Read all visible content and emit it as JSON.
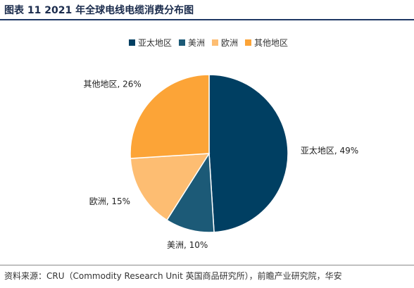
{
  "figure": {
    "title": "图表 11 2021 年全球电线电缆消费分布图",
    "source": "资料来源：CRU（Commodity Research Unit 英国商品研究所），前瞻产业研究院，华安"
  },
  "chart_data": {
    "type": "pie",
    "legend_position": "top",
    "slices": [
      {
        "name": "亚太地区",
        "value": 49,
        "label": "亚太地区, 49%",
        "color": "#003f62"
      },
      {
        "name": "美洲",
        "value": 10,
        "label": "美洲, 10%",
        "color": "#1c5a77"
      },
      {
        "name": "欧洲",
        "value": 15,
        "label": "欧洲, 15%",
        "color": "#fdbd72"
      },
      {
        "name": "其他地区",
        "value": 26,
        "label": "其他地区, 26%",
        "color": "#fca437"
      }
    ]
  }
}
